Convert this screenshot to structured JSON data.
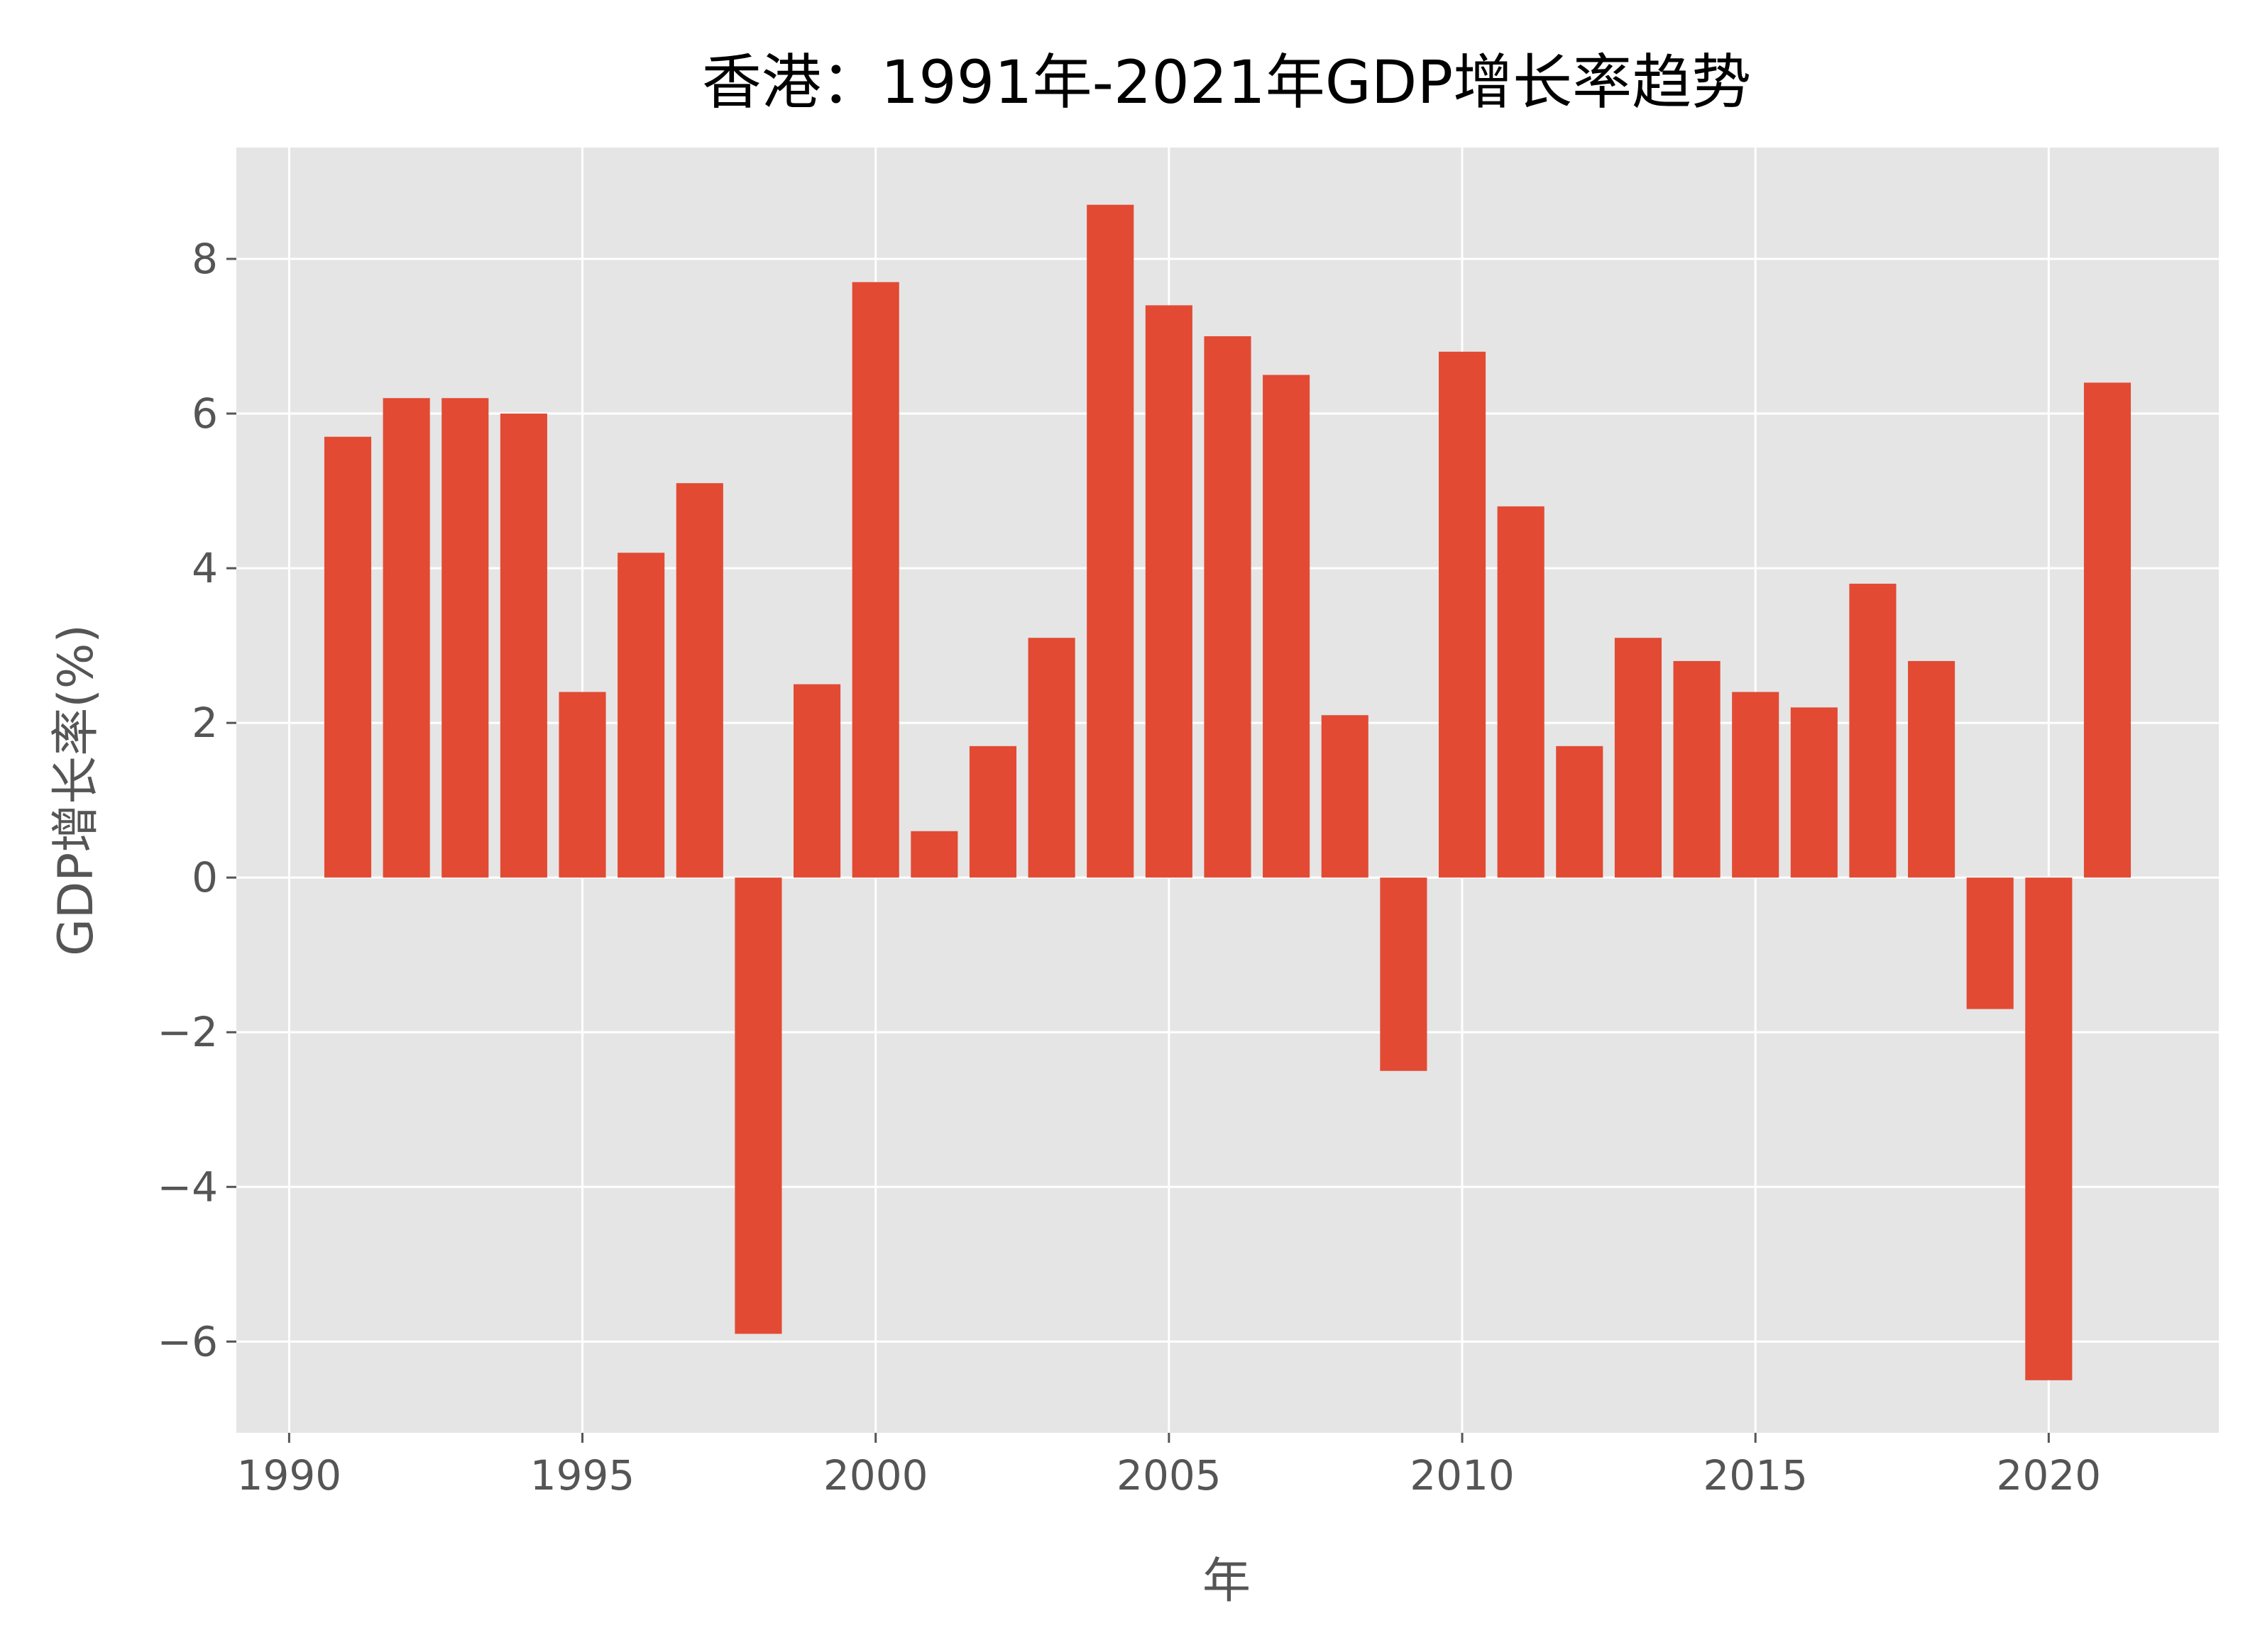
{
  "chart_data": {
    "type": "bar",
    "title": "香港：1991年-2021年GDP增长率趋势",
    "xlabel": "年",
    "ylabel": "GDP增长率(%)",
    "x": [
      1991,
      1992,
      1993,
      1994,
      1995,
      1996,
      1997,
      1998,
      1999,
      2000,
      2001,
      2002,
      2003,
      2004,
      2005,
      2006,
      2007,
      2008,
      2009,
      2010,
      2011,
      2012,
      2013,
      2014,
      2015,
      2016,
      2017,
      2018,
      2019,
      2020,
      2021
    ],
    "values": [
      5.7,
      6.2,
      6.2,
      6.0,
      2.4,
      4.2,
      5.1,
      -5.9,
      2.5,
      7.7,
      0.6,
      1.7,
      3.1,
      8.7,
      7.4,
      7.0,
      6.5,
      2.1,
      -2.5,
      6.8,
      4.8,
      1.7,
      3.1,
      2.8,
      2.4,
      2.2,
      3.8,
      2.8,
      -1.7,
      -6.5,
      6.4
    ],
    "xlim": [
      1989.1,
      2022.9
    ],
    "ylim": [
      -7.18,
      9.44
    ],
    "xticks": [
      1990,
      1995,
      2000,
      2005,
      2010,
      2015,
      2020
    ],
    "yticks": [
      -6,
      -4,
      -2,
      0,
      2,
      4,
      6,
      8
    ],
    "ytick_labels": [
      "−6",
      "−4",
      "−2",
      "0",
      "2",
      "4",
      "6",
      "8"
    ],
    "grid": true,
    "colors": {
      "bar": "#e24a33",
      "plot_background": "#e5e5e5",
      "grid": "#ffffff",
      "text": "#555555"
    }
  }
}
